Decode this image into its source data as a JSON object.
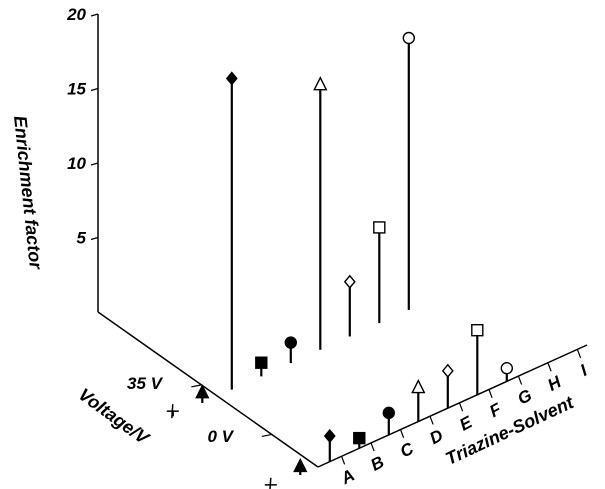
{
  "chart_data": {
    "type": "scatter-3d-stem",
    "zlabel": "Enrichment factor",
    "ylabel": "Voltage/V",
    "xlabel": "Triazine-Solvent",
    "z_ticks": [
      "20",
      "15",
      "10",
      "5"
    ],
    "z_range": [
      0,
      20
    ],
    "voltage_levels": [
      "0 V",
      "35 V"
    ],
    "categories": [
      "A",
      "B",
      "C",
      "D",
      "E",
      "F",
      "G",
      "H",
      "I"
    ],
    "markers": [
      "cross",
      "triangle-filled",
      "diamond-filled",
      "square-filled",
      "circle-filled",
      "triangle-open",
      "diamond-open",
      "square-open",
      "circle-open"
    ],
    "series": [
      {
        "voltage": "35 V",
        "values": [
          0.3,
          0.6,
          18.2,
          0.8,
          1.2,
          15.5,
          3.2,
          5.6,
          15.9
        ]
      },
      {
        "voltage": "0 V",
        "values": [
          0.2,
          0.5,
          1.5,
          0.6,
          1.3,
          2.0,
          2.2,
          3.8,
          0.8
        ]
      }
    ],
    "grid": false,
    "legend": "none"
  }
}
